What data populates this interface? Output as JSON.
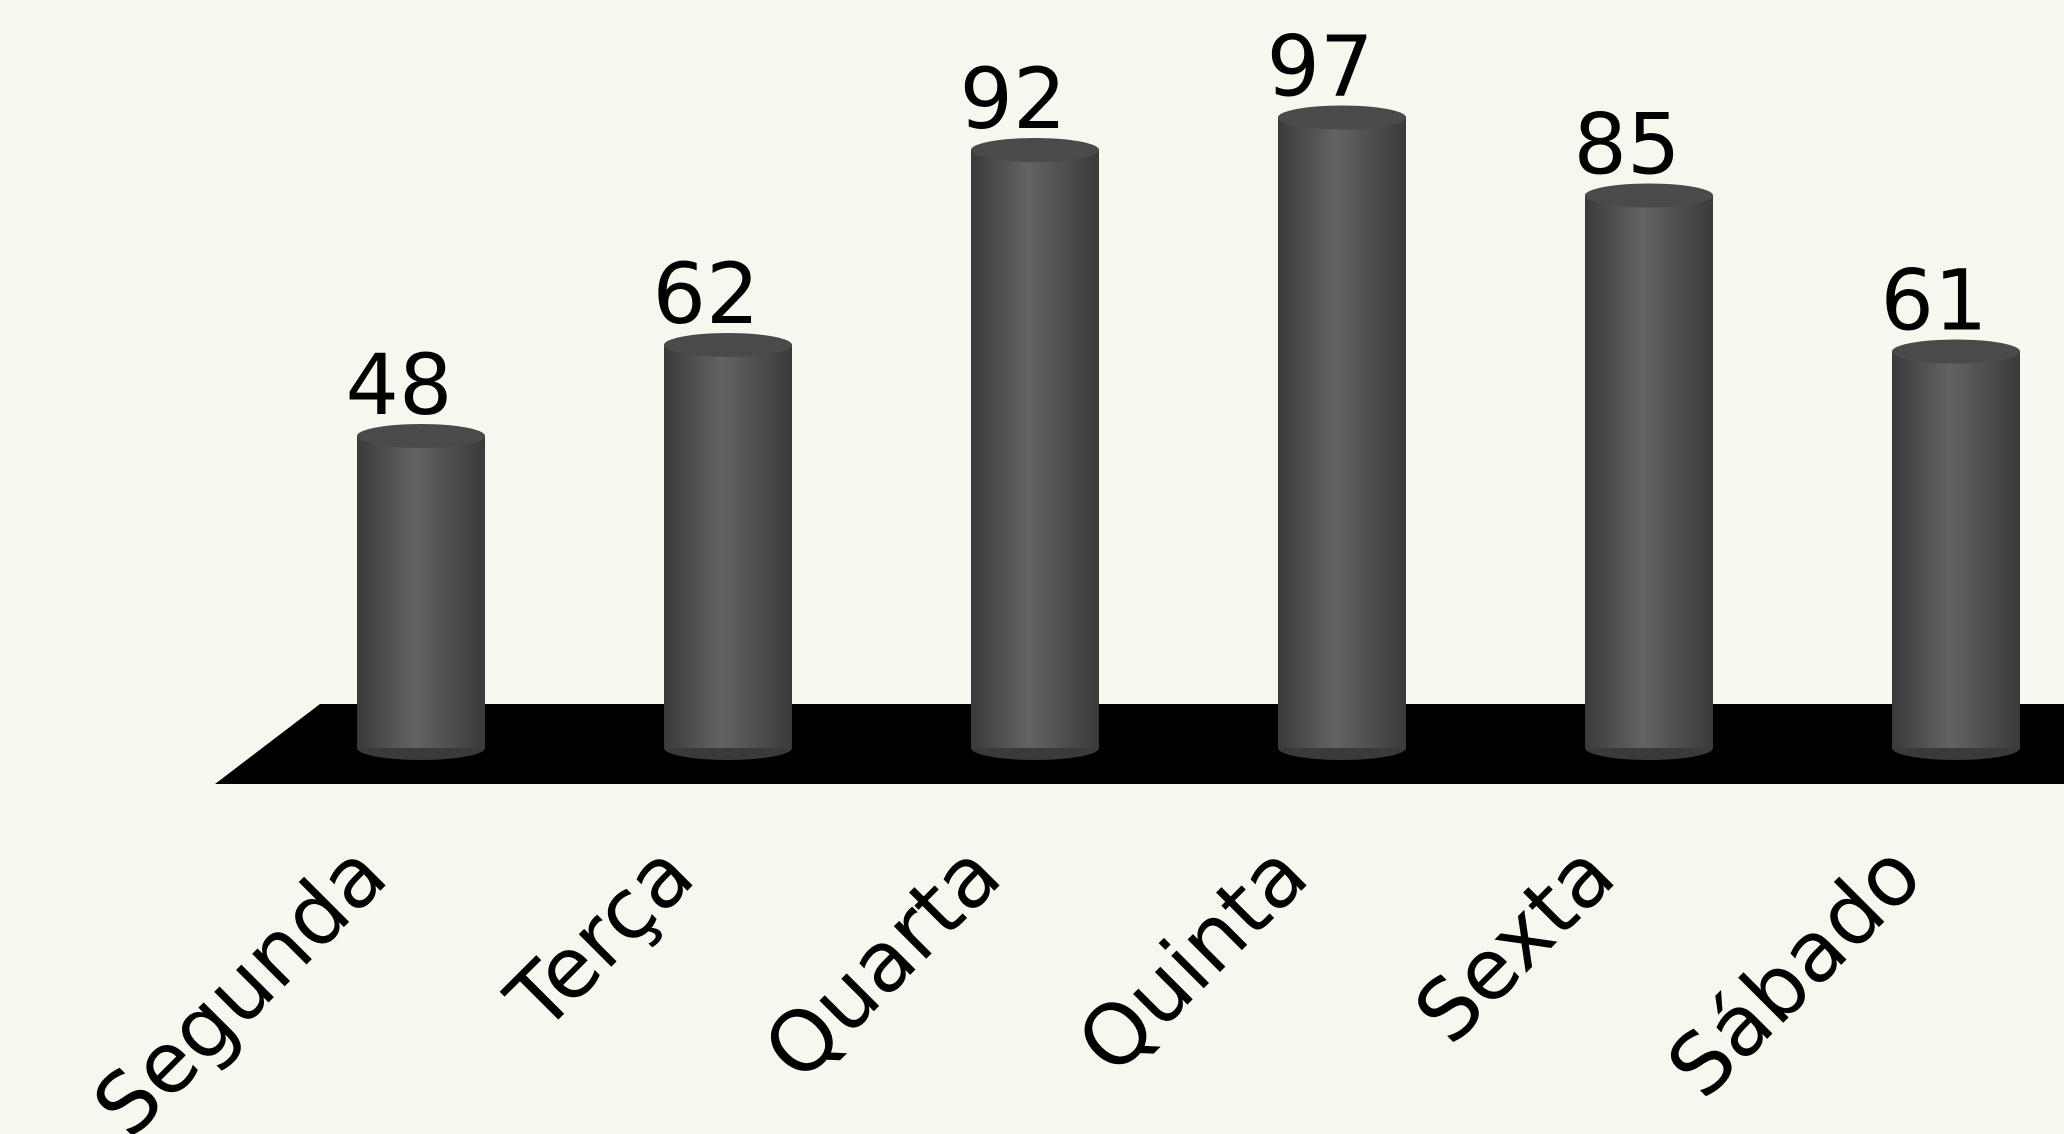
{
  "chart_data": {
    "type": "bar",
    "categories": [
      "Segunda",
      "Terça",
      "Quarta",
      "Quinta",
      "Sexta",
      "Sábado"
    ],
    "values": [
      48,
      62,
      92,
      97,
      85,
      61
    ],
    "title": "",
    "xlabel": "",
    "ylabel": "",
    "ylim": [
      0,
      100
    ],
    "grid": false,
    "bar_shape": "cylinder",
    "colors": {
      "background": "#f5f8ec",
      "floor": "#000000",
      "bar_dark": "#3a3a3a",
      "bar_light": "#636363",
      "bar_top": "#4a4a4a",
      "text": "#000000"
    }
  }
}
